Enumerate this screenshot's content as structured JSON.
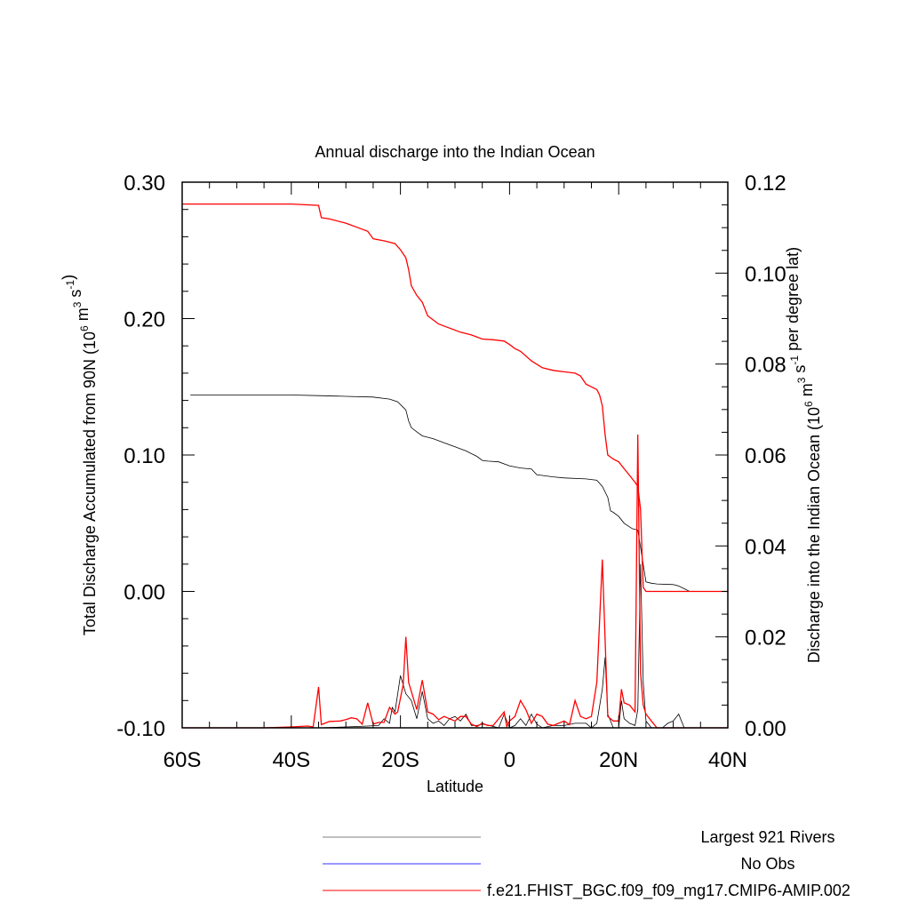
{
  "chart_data": {
    "type": "line",
    "title": "Annual discharge into the Indian Ocean",
    "xlabel": "Latitude",
    "ylabel_left": "Total Discharge Accumulated from 90N (10^6 m^3 s^-1)",
    "ylabel_right": "Discharge into the Indian Ocean (10^6 m^3 s^-1 per degree lat)",
    "xlim": [
      -60,
      40
    ],
    "ylim_left": [
      -0.1,
      0.3
    ],
    "ylim_right": [
      0,
      0.12
    ],
    "x_ticks": [
      {
        "value": -60,
        "label": "60S"
      },
      {
        "value": -40,
        "label": "40S"
      },
      {
        "value": -20,
        "label": "20S"
      },
      {
        "value": 0,
        "label": "0"
      },
      {
        "value": 20,
        "label": "20N"
      },
      {
        "value": 40,
        "label": "40N"
      }
    ],
    "y_ticks_left": [
      {
        "value": 0.3,
        "label": "0.30"
      },
      {
        "value": 0.2,
        "label": "0.20"
      },
      {
        "value": 0.1,
        "label": "0.10"
      },
      {
        "value": 0.0,
        "label": "0.00"
      },
      {
        "value": -0.1,
        "label": "-0.10"
      }
    ],
    "y_ticks_right": [
      {
        "value": 0.12,
        "label": "0.12"
      },
      {
        "value": 0.1,
        "label": "0.10"
      },
      {
        "value": 0.08,
        "label": "0.08"
      },
      {
        "value": 0.06,
        "label": "0.06"
      },
      {
        "value": 0.04,
        "label": "0.04"
      },
      {
        "value": 0.02,
        "label": "0.02"
      },
      {
        "value": 0.0,
        "label": "0.00"
      }
    ],
    "series": [
      {
        "name": "Largest 921 Rivers",
        "color": "#000000",
        "axis": "left",
        "kind": "accumulated",
        "points": [
          [
            -58.5,
            0.144
          ],
          [
            -50,
            0.144
          ],
          [
            -40,
            0.144
          ],
          [
            -35,
            0.1435
          ],
          [
            -30,
            0.143
          ],
          [
            -25,
            0.1425
          ],
          [
            -22,
            0.141
          ],
          [
            -20.5,
            0.139
          ],
          [
            -19.5,
            0.135
          ],
          [
            -19,
            0.133
          ],
          [
            -18.5,
            0.125
          ],
          [
            -18,
            0.12
          ],
          [
            -17,
            0.117
          ],
          [
            -16,
            0.114
          ],
          [
            -14,
            0.112
          ],
          [
            -12,
            0.109
          ],
          [
            -10,
            0.106
          ],
          [
            -8,
            0.103
          ],
          [
            -6,
            0.099
          ],
          [
            -5,
            0.096
          ],
          [
            -4,
            0.0955
          ],
          [
            -2,
            0.095
          ],
          [
            0,
            0.092
          ],
          [
            2,
            0.0905
          ],
          [
            4,
            0.0898
          ],
          [
            5,
            0.0855
          ],
          [
            6,
            0.085
          ],
          [
            8,
            0.084
          ],
          [
            10,
            0.0832
          ],
          [
            14,
            0.0825
          ],
          [
            16,
            0.0815
          ],
          [
            17,
            0.077
          ],
          [
            18,
            0.069
          ],
          [
            18.5,
            0.059
          ],
          [
            19,
            0.058
          ],
          [
            20,
            0.055
          ],
          [
            21,
            0.05
          ],
          [
            22.5,
            0.046
          ],
          [
            23.5,
            0.045
          ],
          [
            25,
            0.007
          ],
          [
            26,
            0.006
          ],
          [
            27,
            0.0055
          ],
          [
            30,
            0.005
          ],
          [
            31,
            0.004
          ],
          [
            33,
            0.0
          ],
          [
            35,
            0.0
          ],
          [
            40,
            0.0
          ]
        ]
      },
      {
        "name": "No Obs",
        "color": "#3333ff",
        "axis": "left",
        "kind": "accumulated",
        "points": []
      },
      {
        "name": "f.e21.FHIST_BGC.f09_f09_mg17.CMIP6-AMIP.002",
        "color": "#ff0000",
        "axis": "left",
        "kind": "accumulated",
        "points": [
          [
            -60,
            0.284
          ],
          [
            -50,
            0.284
          ],
          [
            -40,
            0.284
          ],
          [
            -35,
            0.283
          ],
          [
            -34.5,
            0.274
          ],
          [
            -33,
            0.273
          ],
          [
            -30,
            0.27
          ],
          [
            -28,
            0.267
          ],
          [
            -26,
            0.264
          ],
          [
            -25,
            0.2585
          ],
          [
            -23,
            0.257
          ],
          [
            -21,
            0.255
          ],
          [
            -20,
            0.2505
          ],
          [
            -19,
            0.2445
          ],
          [
            -18.5,
            0.236
          ],
          [
            -18,
            0.224
          ],
          [
            -17,
            0.217
          ],
          [
            -16,
            0.212
          ],
          [
            -15,
            0.202
          ],
          [
            -14,
            0.199
          ],
          [
            -13,
            0.196
          ],
          [
            -11,
            0.193
          ],
          [
            -9,
            0.19
          ],
          [
            -7,
            0.188
          ],
          [
            -5,
            0.185
          ],
          [
            -3,
            0.1845
          ],
          [
            -1,
            0.1835
          ],
          [
            0,
            0.181
          ],
          [
            1,
            0.178
          ],
          [
            2,
            0.176
          ],
          [
            4,
            0.169
          ],
          [
            6,
            0.164
          ],
          [
            8,
            0.162
          ],
          [
            12,
            0.16
          ],
          [
            13,
            0.158
          ],
          [
            14,
            0.152
          ],
          [
            15,
            0.15
          ],
          [
            16,
            0.148
          ],
          [
            16.5,
            0.144
          ],
          [
            17,
            0.136
          ],
          [
            17.5,
            0.115
          ],
          [
            18,
            0.1
          ],
          [
            19,
            0.097
          ],
          [
            20,
            0.095
          ],
          [
            21,
            0.09
          ],
          [
            22,
            0.085
          ],
          [
            23,
            0.08
          ],
          [
            23.5,
            0.077
          ],
          [
            24,
            0.06
          ],
          [
            24.5,
            0.003
          ],
          [
            25,
            0.0
          ],
          [
            30,
            0.0
          ],
          [
            35,
            0.0
          ],
          [
            40,
            0.0
          ]
        ]
      },
      {
        "name": "Largest 921 Rivers",
        "color": "#000000",
        "axis": "right",
        "kind": "per-degree",
        "points": [
          [
            -60,
            0
          ],
          [
            -45,
            0
          ],
          [
            -36,
            0
          ],
          [
            -35,
            0
          ],
          [
            -30,
            0.0002
          ],
          [
            -26,
            0.0004
          ],
          [
            -24,
            0.0005
          ],
          [
            -23,
            0.002
          ],
          [
            -22,
            0.001
          ],
          [
            -21.5,
            0.0045
          ],
          [
            -21,
            0.0035
          ],
          [
            -20,
            0.0115
          ],
          [
            -19,
            0.0075
          ],
          [
            -18,
            0.006
          ],
          [
            -17,
            0.002
          ],
          [
            -16,
            0.008
          ],
          [
            -15,
            0.002
          ],
          [
            -14,
            0.001
          ],
          [
            -13,
            0.0015
          ],
          [
            -12,
            0.0005
          ],
          [
            -11,
            0.002
          ],
          [
            -10,
            0.0025
          ],
          [
            -9,
            0.0015
          ],
          [
            -8,
            0.003
          ],
          [
            -7,
            0.0005
          ],
          [
            -6,
            0.0005
          ],
          [
            -5,
            0.0008
          ],
          [
            -4,
            0.0006
          ],
          [
            -2,
            0.0
          ],
          [
            -1,
            0.003
          ],
          [
            0,
            0.0
          ],
          [
            1,
            0.0005
          ],
          [
            2,
            0.002
          ],
          [
            3,
            0.0005
          ],
          [
            4,
            0.003
          ],
          [
            5,
            0.0008
          ],
          [
            6,
            0.0
          ],
          [
            8,
            0.0005
          ],
          [
            10,
            0.0005
          ],
          [
            12,
            0.001
          ],
          [
            14,
            0.001
          ],
          [
            15,
            0.0
          ],
          [
            16,
            0.001
          ],
          [
            17,
            0.0085
          ],
          [
            17.5,
            0.0155
          ],
          [
            18,
            0.003
          ],
          [
            19,
            0.0
          ],
          [
            20,
            0.0
          ],
          [
            20.5,
            0.006
          ],
          [
            21,
            0.002
          ],
          [
            22,
            0.001
          ],
          [
            23,
            0.0005
          ],
          [
            23.5,
            0.004
          ],
          [
            24,
            0.036
          ],
          [
            24.5,
            0.01
          ],
          [
            25,
            0.0015
          ],
          [
            26,
            0.0
          ],
          [
            28,
            0.0
          ],
          [
            29,
            0.001
          ],
          [
            30,
            0.0015
          ],
          [
            31,
            0.003
          ],
          [
            32,
            0.0
          ],
          [
            35,
            0.0
          ],
          [
            40,
            0.0
          ]
        ]
      },
      {
        "name": "f.e21.FHIST_BGC.f09_f09_mg17.CMIP6-AMIP.002",
        "color": "#ff0000",
        "axis": "right",
        "kind": "per-degree",
        "points": [
          [
            -60,
            0
          ],
          [
            -45,
            0
          ],
          [
            -40,
            0.0002
          ],
          [
            -37,
            0.0004
          ],
          [
            -36,
            0.0002
          ],
          [
            -35,
            0.009
          ],
          [
            -34.5,
            0.0007
          ],
          [
            -33,
            0.0014
          ],
          [
            -31,
            0.0015
          ],
          [
            -30,
            0.0018
          ],
          [
            -29,
            0.0022
          ],
          [
            -28,
            0.002
          ],
          [
            -27,
            0.0008
          ],
          [
            -26,
            0.0055
          ],
          [
            -25,
            0.0008
          ],
          [
            -24,
            0.0012
          ],
          [
            -23,
            0.0012
          ],
          [
            -22,
            0.0045
          ],
          [
            -21,
            0.003
          ],
          [
            -20.5,
            0.0035
          ],
          [
            -19.5,
            0.0095
          ],
          [
            -19,
            0.02
          ],
          [
            -18.5,
            0.01
          ],
          [
            -17,
            0.004
          ],
          [
            -16,
            0.0105
          ],
          [
            -15,
            0.0035
          ],
          [
            -14,
            0.003
          ],
          [
            -13,
            0.0018
          ],
          [
            -12,
            0.0025
          ],
          [
            -11,
            0.002
          ],
          [
            -10,
            0.0015
          ],
          [
            -9,
            0.0025
          ],
          [
            -8,
            0.0025
          ],
          [
            -7,
            0.0008
          ],
          [
            -6,
            0.0003
          ],
          [
            -5,
            0.001
          ],
          [
            -4,
            0.0005
          ],
          [
            -3,
            0.0005
          ],
          [
            -1,
            0.0035
          ],
          [
            -0.5,
            0.0003
          ],
          [
            0,
            0.0015
          ],
          [
            1,
            0.0025
          ],
          [
            2,
            0.006
          ],
          [
            3,
            0.004
          ],
          [
            4,
            0.001
          ],
          [
            5,
            0.003
          ],
          [
            6,
            0.0025
          ],
          [
            7,
            0.0008
          ],
          [
            8,
            0.0005
          ],
          [
            10,
            0.0015
          ],
          [
            11,
            0.0007
          ],
          [
            12,
            0.006
          ],
          [
            13,
            0.0025
          ],
          [
            14,
            0.002
          ],
          [
            15,
            0.0025
          ],
          [
            16,
            0.01
          ],
          [
            16.5,
            0.0235
          ],
          [
            17,
            0.037
          ],
          [
            18,
            0.0025
          ],
          [
            19,
            0.0015
          ],
          [
            20,
            0.0015
          ],
          [
            20.5,
            0.0085
          ],
          [
            21,
            0.0055
          ],
          [
            22,
            0.005
          ],
          [
            23,
            0.0035
          ],
          [
            23.5,
            0.0645
          ],
          [
            24,
            0.012
          ],
          [
            24.5,
            0.005
          ],
          [
            25,
            0.003
          ],
          [
            26,
            0.0015
          ],
          [
            27,
            0.0
          ],
          [
            30,
            0.0
          ],
          [
            35,
            0.0
          ],
          [
            40,
            0.0
          ]
        ]
      }
    ],
    "legend": {
      "placement": "bottom-right",
      "entries": [
        {
          "label": "Largest 921 Rivers",
          "color": "#808080"
        },
        {
          "label": "No Obs",
          "color": "#3333ff"
        },
        {
          "label": "f.e21.FHIST_BGC.f09_f09_mg17.CMIP6-AMIP.002",
          "color": "#ff0000"
        }
      ]
    }
  }
}
